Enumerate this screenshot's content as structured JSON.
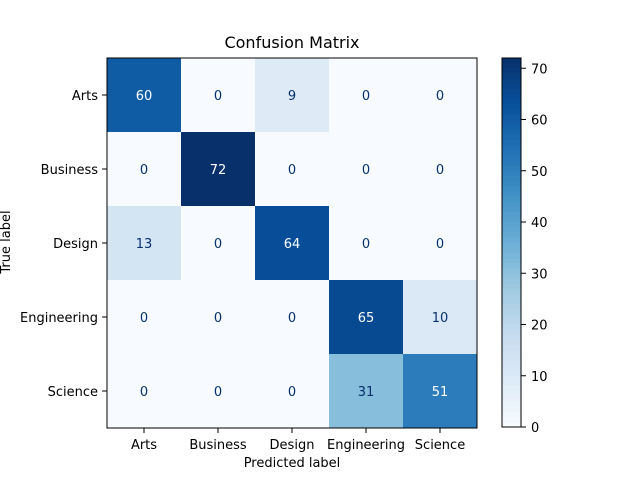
{
  "chart_data": {
    "type": "heatmap",
    "title": "Confusion Matrix",
    "xlabel": "Predicted label",
    "ylabel": "True label",
    "x_categories": [
      "Arts",
      "Business",
      "Design",
      "Engineering",
      "Science"
    ],
    "y_categories": [
      "Arts",
      "Business",
      "Design",
      "Engineering",
      "Science"
    ],
    "values": [
      [
        60,
        0,
        9,
        0,
        0
      ],
      [
        0,
        72,
        0,
        0,
        0
      ],
      [
        13,
        0,
        64,
        0,
        0
      ],
      [
        0,
        0,
        0,
        65,
        10
      ],
      [
        0,
        0,
        0,
        31,
        51
      ]
    ],
    "colorbar": {
      "range": [
        0,
        72
      ],
      "ticks": [
        0,
        10,
        20,
        30,
        40,
        50,
        60,
        70
      ]
    },
    "colormap": "Blues",
    "grid": false
  }
}
